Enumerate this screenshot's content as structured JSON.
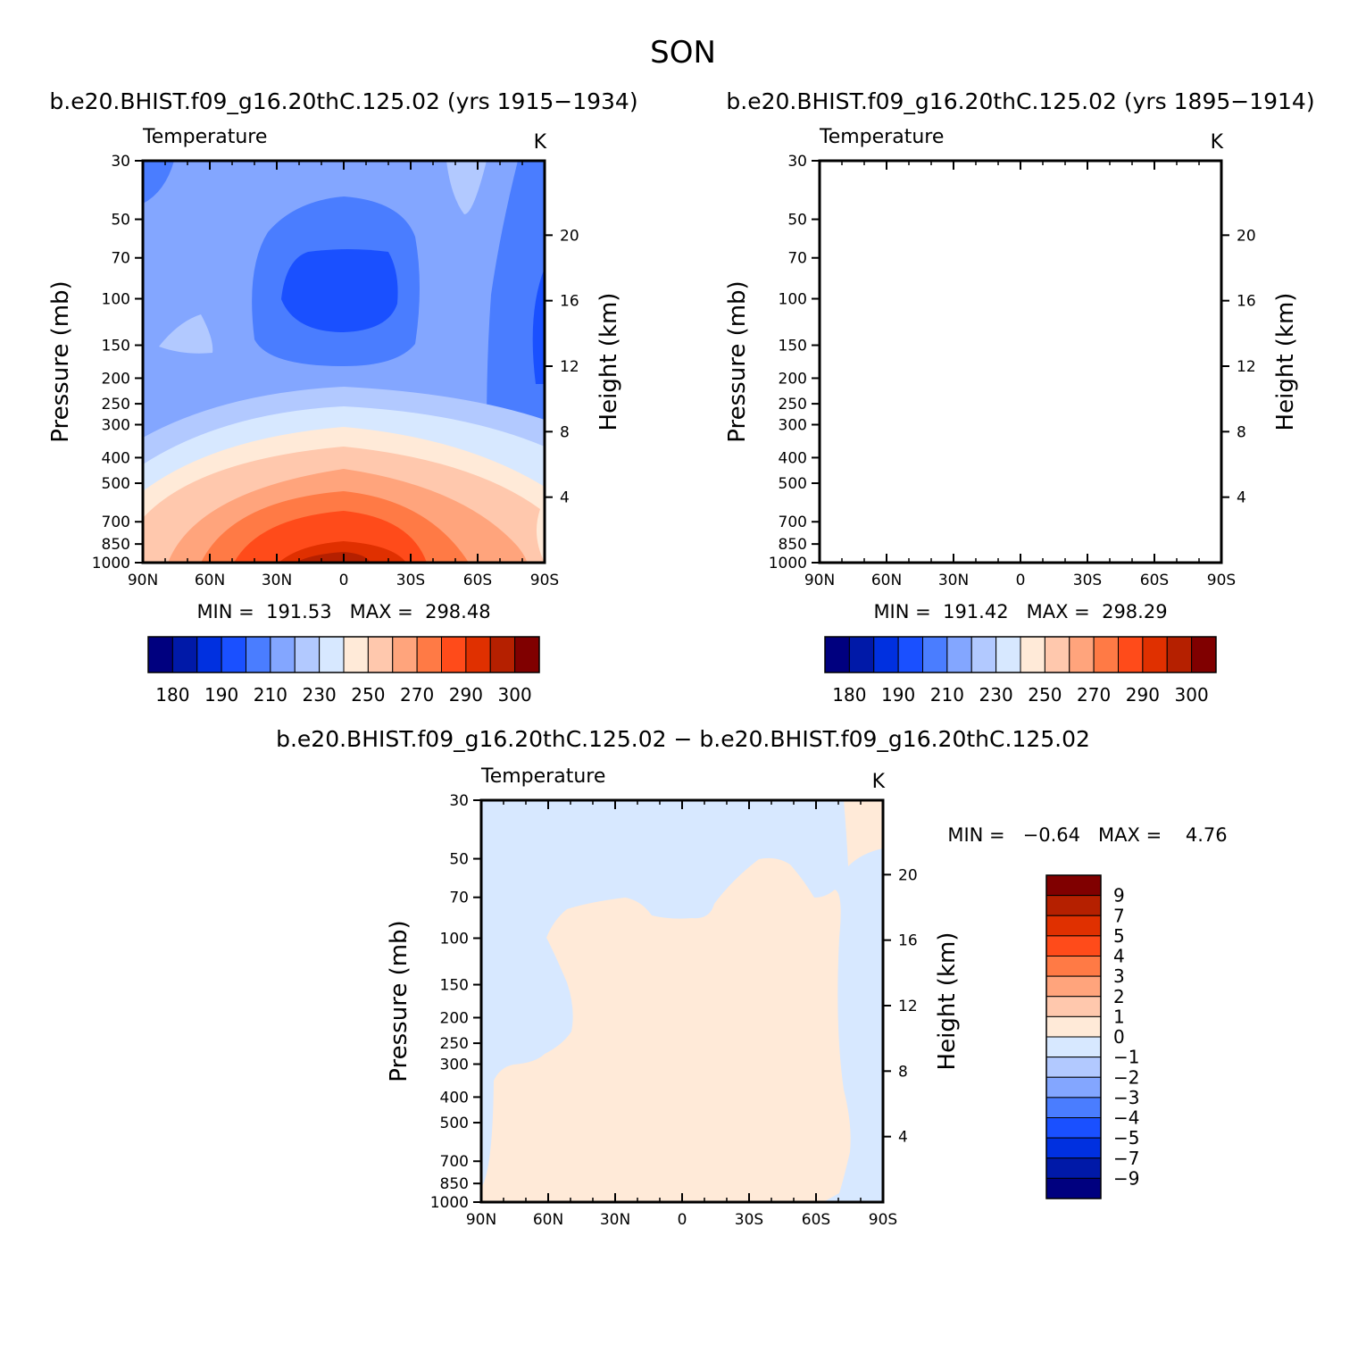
{
  "figure_title": "SON",
  "panels": [
    {
      "title": "b.e20.BHIST.f09_g16.20thC.125.02 (yrs 1915-1934)",
      "left_label": "Temperature",
      "right_label": "K",
      "stats": "MIN =  191.53   MAX =  298.48"
    },
    {
      "title": "b.e20.BHIST.f09_g16.20thC.125.02 (yrs 1895-1914)",
      "left_label": "Temperature",
      "right_label": "K",
      "stats": "MIN =  191.42   MAX =  298.29"
    },
    {
      "title": "b.e20.BHIST.f09_g16.20thC.125.02 - b.e20.BHIST.f09_g16.20thC.125.02",
      "left_label": "Temperature",
      "right_label": "K",
      "stats": "MIN =   -0.64   MAX =    4.76"
    }
  ],
  "chart_data": [
    {
      "type": "heatmap",
      "title": "b.e20.BHIST.f09_g16.20thC.125.02 (yrs 1915-1934)",
      "subtitle_left": "Temperature",
      "units": "K",
      "xlabel": "",
      "ylabel": "Pressure (mb)",
      "ylabel_right": "Height (km)",
      "x_ticks": [
        "90N",
        "60N",
        "30N",
        "0",
        "30S",
        "60S",
        "90S"
      ],
      "y_ticks": [
        30,
        50,
        70,
        100,
        150,
        200,
        250,
        300,
        400,
        500,
        700,
        850,
        1000
      ],
      "y_right_ticks": [
        4,
        8,
        12,
        16,
        20
      ],
      "y_scale": "log",
      "ylim": [
        1000,
        30
      ],
      "xlim": [
        90,
        -90
      ],
      "min": 191.53,
      "max": 298.48,
      "colorbar_levels": [
        180,
        185,
        190,
        200,
        210,
        220,
        230,
        240,
        250,
        260,
        270,
        280,
        290,
        295,
        300
      ],
      "colorbar_labels": [
        "180",
        "190",
        "210",
        "230",
        "250",
        "270",
        "290",
        "300"
      ]
    },
    {
      "type": "heatmap",
      "title": "b.e20.BHIST.f09_g16.20thC.125.02 (yrs 1895-1914)",
      "subtitle_left": "Temperature",
      "units": "K",
      "xlabel": "",
      "ylabel": "Pressure (mb)",
      "ylabel_right": "Height (km)",
      "x_ticks": [
        "90N",
        "60N",
        "30N",
        "0",
        "30S",
        "60S",
        "90S"
      ],
      "y_ticks": [
        30,
        50,
        70,
        100,
        150,
        200,
        250,
        300,
        400,
        500,
        700,
        850,
        1000
      ],
      "y_right_ticks": [
        4,
        8,
        12,
        16,
        20
      ],
      "y_scale": "log",
      "ylim": [
        1000,
        30
      ],
      "xlim": [
        90,
        -90
      ],
      "min": 191.42,
      "max": 298.29,
      "colorbar_levels": [
        180,
        185,
        190,
        200,
        210,
        220,
        230,
        240,
        250,
        260,
        270,
        280,
        290,
        295,
        300
      ],
      "colorbar_labels": [
        "180",
        "190",
        "210",
        "230",
        "250",
        "270",
        "290",
        "300"
      ]
    },
    {
      "type": "heatmap",
      "title": "b.e20.BHIST.f09_g16.20thC.125.02 - b.e20.BHIST.f09_g16.20thC.125.02",
      "subtitle_left": "Temperature",
      "units": "K",
      "xlabel": "",
      "ylabel": "Pressure (mb)",
      "ylabel_right": "Height (km)",
      "x_ticks": [
        "90N",
        "60N",
        "30N",
        "0",
        "30S",
        "60S",
        "90S"
      ],
      "y_ticks": [
        30,
        50,
        70,
        100,
        150,
        200,
        250,
        300,
        400,
        500,
        700,
        850,
        1000
      ],
      "y_right_ticks": [
        4,
        8,
        12,
        16,
        20
      ],
      "y_scale": "log",
      "ylim": [
        1000,
        30
      ],
      "xlim": [
        90,
        -90
      ],
      "min": -0.64,
      "max": 4.76,
      "colorbar_levels": [
        -9,
        -7,
        -5,
        -4,
        -3,
        -2,
        -1,
        0,
        1,
        2,
        3,
        4,
        5,
        7,
        9
      ],
      "colorbar_labels": [
        "9",
        "7",
        "5",
        "4",
        "3",
        "2",
        "1",
        "0",
        "-1",
        "-2",
        "-3",
        "-4",
        "-5",
        "-7",
        "-9"
      ],
      "colorbar_orientation": "vertical"
    }
  ],
  "axis_labels": {
    "pressure": "Pressure (mb)",
    "height": "Height (km)"
  },
  "palette": [
    "#00007f",
    "#0019a8",
    "#0030e0",
    "#1a50ff",
    "#4a7dff",
    "#83a6ff",
    "#b2c9ff",
    "#d7e8ff",
    "#ffead8",
    "#ffc8ad",
    "#ffa47c",
    "#ff7a45",
    "#ff4b1a",
    "#e03000",
    "#b52000",
    "#800000"
  ]
}
